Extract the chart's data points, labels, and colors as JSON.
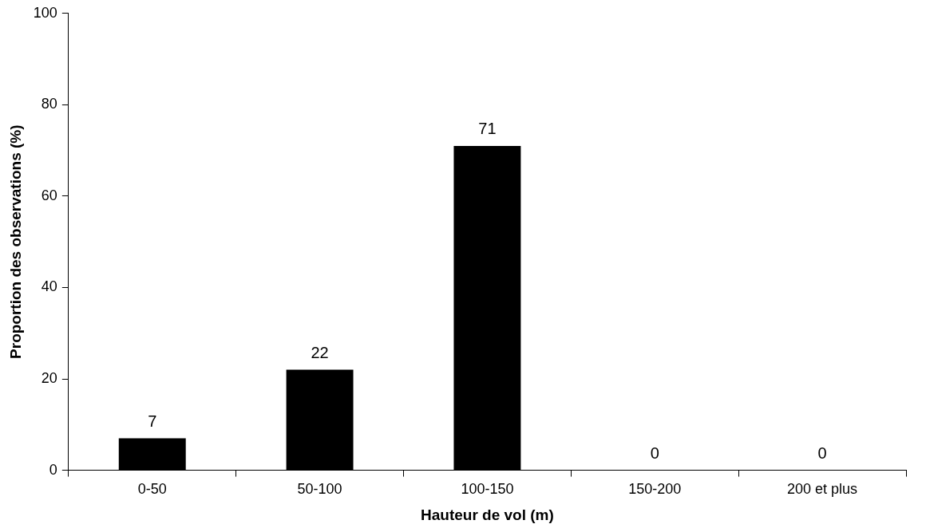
{
  "chart_data": {
    "type": "bar",
    "xlabel": "Hauteur de vol (m)",
    "ylabel": "Proportion des observations (%)",
    "categories": [
      "0-50",
      "50-100",
      "100-150",
      "150-200",
      "200 et plus"
    ],
    "values": [
      7,
      22,
      71,
      0,
      0
    ],
    "color": "#000000",
    "ylim": [
      0,
      100
    ],
    "yticks": [
      0,
      20,
      40,
      60,
      80,
      100
    ],
    "grid": false,
    "legend": false,
    "data_labels": true
  }
}
